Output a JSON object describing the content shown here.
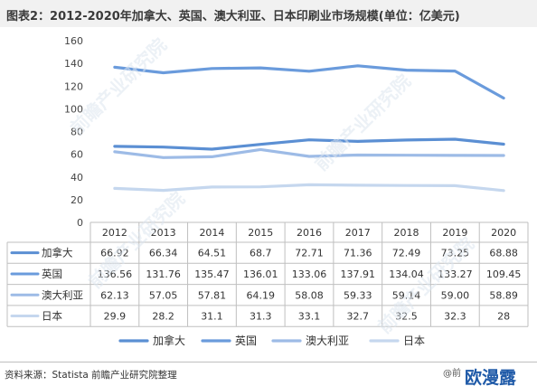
{
  "header": {
    "title": "图表2：2012-2020年加拿大、英国、澳大利亚、日本印刷业市场规模(单位：亿美元)"
  },
  "footer": {
    "source": "资料来源：Statista 前瞻产业研究院整理",
    "brand_prefix": "@前",
    "brand_mark": "欧漫露"
  },
  "watermark": {
    "text": "前瞻产业研究院"
  },
  "chart_data": {
    "type": "line",
    "title": "图表2：2012-2020年加拿大、英国、澳大利亚、日本印刷业市场规模(单位：亿美元)",
    "xlabel": "",
    "ylabel": "",
    "ylim": [
      0,
      160
    ],
    "yticks": [
      "0",
      "20",
      "40",
      "60",
      "80",
      "100",
      "120",
      "140",
      "160"
    ],
    "grid": false,
    "legend": "bottom",
    "categories": [
      "2012",
      "2013",
      "2014",
      "2015",
      "2016",
      "2017",
      "2018",
      "2019",
      "2020"
    ],
    "series": [
      {
        "name": "加拿大",
        "color": "#5b8fd3",
        "values": [
          66.92,
          66.34,
          64.51,
          68.7,
          72.71,
          71.36,
          72.49,
          73.25,
          68.88
        ],
        "labels": [
          "66.92",
          "66.34",
          "64.51",
          "68.7",
          "72.71",
          "71.36",
          "72.49",
          "73.25",
          "68.88"
        ]
      },
      {
        "name": "英国",
        "color": "#6a9bdc",
        "values": [
          136.56,
          131.76,
          135.47,
          136.01,
          133.06,
          137.91,
          134.04,
          133.27,
          109.45
        ],
        "labels": [
          "136.56",
          "131.76",
          "135.47",
          "136.01",
          "133.06",
          "137.91",
          "134.04",
          "133.27",
          "109.45"
        ]
      },
      {
        "name": "澳大利亚",
        "color": "#9dbbe6",
        "values": [
          62.13,
          57.05,
          57.81,
          64.19,
          58.08,
          59.33,
          59.14,
          59.0,
          58.89
        ],
        "labels": [
          "62.13",
          "57.05",
          "57.81",
          "64.19",
          "58.08",
          "59.33",
          "59.14",
          "59.00",
          "58.89"
        ]
      },
      {
        "name": "日本",
        "color": "#c5d7ee",
        "values": [
          29.9,
          28.2,
          31.1,
          31.3,
          33.1,
          32.7,
          32.5,
          32.3,
          28
        ],
        "labels": [
          "29.9",
          "28.2",
          "31.1",
          "31.3",
          "33.1",
          "32.7",
          "32.5",
          "32.3",
          "28"
        ]
      }
    ]
  }
}
